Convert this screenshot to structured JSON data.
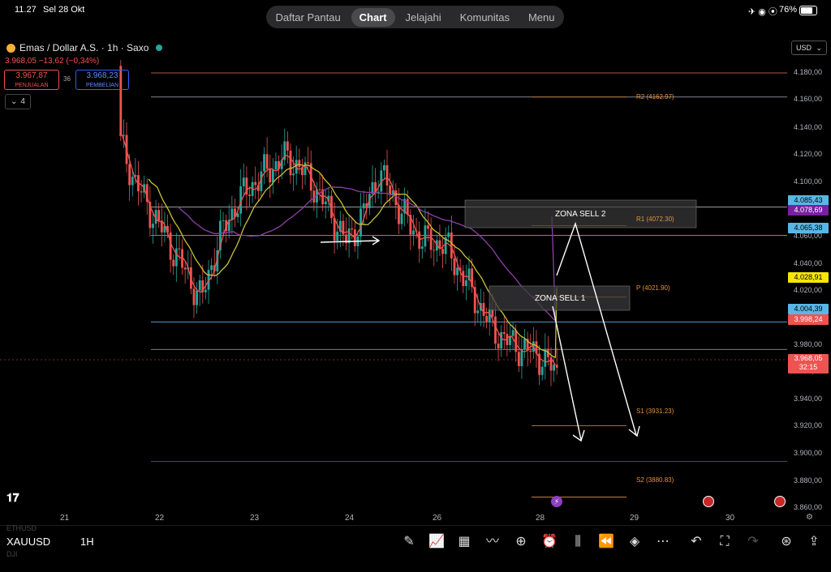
{
  "status": {
    "time": "11.27",
    "date": "Sel 28 Okt",
    "battery": "76%"
  },
  "nav": {
    "items": [
      "Daftar Pantau",
      "Chart",
      "Jelajahi",
      "Komunitas",
      "Menu"
    ],
    "active": "Chart"
  },
  "symbol": {
    "name": "Emas / Dollar A.S. · 1h · Saxo",
    "price_change": "3.968,05  −13,62 (−0,34%)",
    "bid": "3.967,87",
    "bid_label": "PENJUALAN",
    "ask": "3.968,23",
    "ask_label": "PEMBELIAN",
    "spread": "36",
    "indicators_count": "4"
  },
  "currency": "USD",
  "y_axis": [
    "4.180,00",
    "4.160,00",
    "4.140,00",
    "4.120,00",
    "4.100,00",
    "4.080,00",
    "4.060,00",
    "4.040,00",
    "4.020,00",
    "3.980,00",
    "3.960,00",
    "3.940,00",
    "3.920,00",
    "3.900,00",
    "3.880,00",
    "3.860,00"
  ],
  "price_tags": {
    "t1": "4.085,43",
    "t2": "4.078,69",
    "t3": "4.065,38",
    "t4": "4.028,91",
    "t5": "4.004,39",
    "t6": "3.998,24",
    "t7": "3.968,05",
    "t7b": "32:15"
  },
  "tag_colors": {
    "cyan": "#5ab6e4",
    "purple": "#7b1fa2",
    "yellow": "#f5e50a",
    "red": "#ef5350"
  },
  "x_axis": [
    "21",
    "22",
    "23",
    "24",
    "26",
    "28",
    "29",
    "30"
  ],
  "levels": {
    "r2": "R2 (4162.97)",
    "r1": "R1 (4072.30)",
    "p": "P (4021.90)",
    "s1": "S1 (3931.23)",
    "s2": "S2 (3880.83)"
  },
  "zones": {
    "sell1": "ZONA SELL 1",
    "sell2": "ZONA SELL 2"
  },
  "bottom": {
    "symbol": "XAUUSD",
    "timeframe": "1H",
    "ghost_top": "ETHUSD",
    "ghost_bottom": "DJI"
  },
  "chart_data": {
    "type": "candlestick",
    "symbol": "XAUUSD",
    "timeframe": "1h",
    "ylim": [
      3860,
      4190
    ],
    "x_ticks": [
      "21",
      "22",
      "23",
      "24",
      "26",
      "28",
      "29",
      "30"
    ],
    "close_approx": [
      4130,
      4100,
      4080,
      4060,
      4040,
      4020,
      4060,
      4085,
      4100,
      4110,
      4120,
      4115,
      4100,
      4080,
      4060,
      4080,
      4110,
      4090,
      4070,
      4060,
      4060,
      4040,
      4020,
      4000,
      3990,
      3985,
      3980,
      3968
    ],
    "horizontal_levels": [
      4180,
      4163,
      4085.43,
      4078.69,
      4072.3,
      4065.38,
      4021.9,
      4004.39,
      3990,
      3931.23,
      3906,
      3880.83
    ],
    "moving_averages": [
      {
        "color": "#ef5350",
        "desc": "red"
      },
      {
        "color": "#c9c235",
        "desc": "yellow"
      },
      {
        "color": "#8e3fa8",
        "desc": "purple"
      }
    ]
  }
}
